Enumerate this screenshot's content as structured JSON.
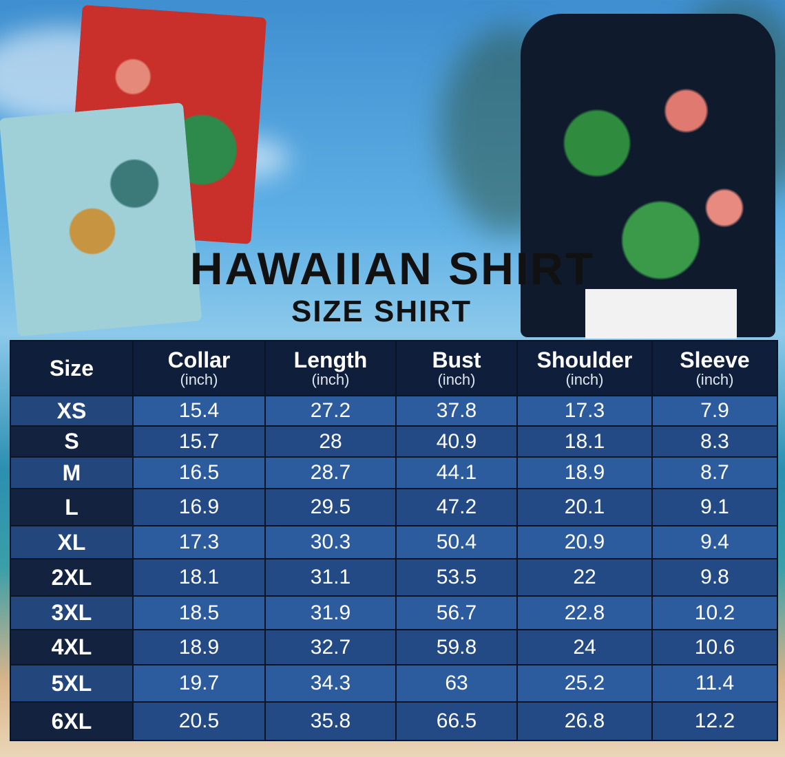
{
  "title": "HAWAIIAN SHIRT",
  "subtitle": "SIZE SHIRT",
  "table": {
    "headers": [
      {
        "label": "Size",
        "unit": ""
      },
      {
        "label": "Collar",
        "unit": "(inch)"
      },
      {
        "label": "Length",
        "unit": "(inch)"
      },
      {
        "label": "Bust",
        "unit": "(inch)"
      },
      {
        "label": "Shoulder",
        "unit": "(inch)"
      },
      {
        "label": "Sleeve",
        "unit": "(inch)"
      }
    ],
    "rows": [
      [
        "XS",
        "15.4",
        "27.2",
        "37.8",
        "17.3",
        "7.9"
      ],
      [
        "S",
        "15.7",
        "28",
        "40.9",
        "18.1",
        "8.3"
      ],
      [
        "M",
        "16.5",
        "28.7",
        "44.1",
        "18.9",
        "8.7"
      ],
      [
        "L",
        "16.9",
        "29.5",
        "47.2",
        "20.1",
        "9.1"
      ],
      [
        "XL",
        "17.3",
        "30.3",
        "50.4",
        "20.9",
        "9.4"
      ],
      [
        "2XL",
        "18.1",
        "31.1",
        "53.5",
        "22",
        "9.8"
      ],
      [
        "3XL",
        "18.5",
        "31.9",
        "56.7",
        "22.8",
        "10.2"
      ],
      [
        "4XL",
        "18.9",
        "32.7",
        "59.8",
        "24",
        "10.6"
      ],
      [
        "5XL",
        "19.7",
        "34.3",
        "63",
        "25.2",
        "11.4"
      ],
      [
        "6XL",
        "20.5",
        "35.8",
        "66.5",
        "26.8",
        "12.2"
      ]
    ]
  },
  "colors": {
    "header": "#0f1e3a",
    "row_light": "#2c5c9e",
    "row_dark": "#244a86"
  }
}
